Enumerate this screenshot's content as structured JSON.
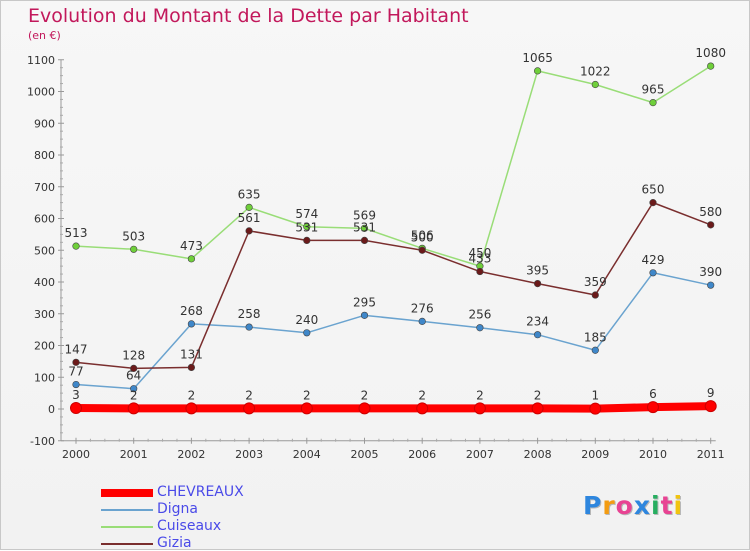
{
  "title": "Evolution du Montant de la Dette par Habitant",
  "subtitle": "(en €)",
  "chart_data": {
    "type": "line",
    "x": [
      "2000",
      "2001",
      "2002",
      "2003",
      "2004",
      "2005",
      "2006",
      "2007",
      "2008",
      "2009",
      "2010",
      "2011"
    ],
    "ylim": [
      -100,
      1100
    ],
    "yticks": [
      -100,
      0,
      100,
      200,
      300,
      400,
      500,
      600,
      700,
      800,
      900,
      1000,
      1100
    ],
    "grid": false,
    "legend_position": "bottom-left",
    "series": [
      {
        "name": "CHEVREAUX",
        "color": "#ff0000",
        "marker": "#ff0000",
        "thick": true,
        "values": [
          3,
          2,
          2,
          2,
          2,
          2,
          2,
          2,
          2,
          1,
          6,
          9
        ]
      },
      {
        "name": "Digna",
        "color": "#6aa3cf",
        "marker": "#3f87c9",
        "values": [
          77,
          64,
          268,
          258,
          240,
          295,
          276,
          256,
          234,
          185,
          429,
          390
        ]
      },
      {
        "name": "Cuiseaux",
        "color": "#99dd77",
        "marker": "#6fcf3a",
        "values": [
          513,
          503,
          473,
          635,
          574,
          569,
          506,
          450,
          1065,
          1022,
          965,
          1080
        ]
      },
      {
        "name": "Gizia",
        "color": "#7a2e2e",
        "marker": "#6b1a1a",
        "values": [
          147,
          128,
          131,
          561,
          531,
          531,
          500,
          433,
          395,
          359,
          650,
          580
        ]
      }
    ]
  },
  "logo": {
    "letters": [
      "P",
      "r",
      "o",
      "x",
      "i",
      "t",
      "i"
    ],
    "colors": [
      "#2e86de",
      "#f39c12",
      "#e84393",
      "#2e86de",
      "#27ae60",
      "#e84393",
      "#f1c40f"
    ]
  }
}
